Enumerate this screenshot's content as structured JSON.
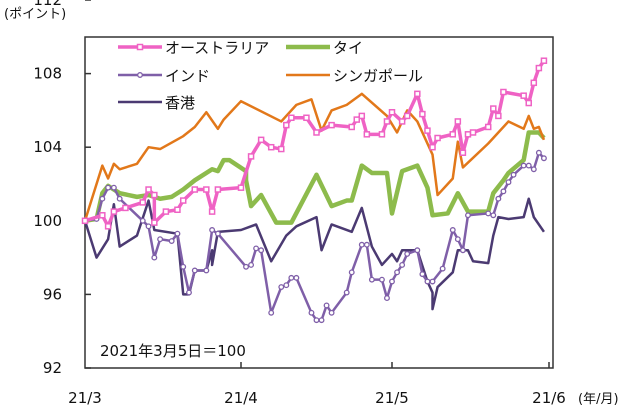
{
  "chart_data": {
    "type": "line",
    "ylabel": "(ポイント)",
    "xlabel": "(年/月)",
    "ylim": [
      92,
      112
    ],
    "yticks": [
      "112",
      "108",
      "104",
      "100",
      "96",
      "92"
    ],
    "xlim": [
      "2021-03-05",
      "2021-06-01"
    ],
    "xticks": [
      {
        "date": "2021-03-05",
        "label": "21/3"
      },
      {
        "date": "2021-04-01",
        "label": "21/4"
      },
      {
        "date": "2021-05-01",
        "label": "21/5"
      },
      {
        "date": "2021-06-01",
        "label": "21/6"
      }
    ],
    "annotation": "2021年3月5日＝100",
    "grid": false,
    "legend_position": "top-left",
    "series": [
      {
        "name": "オーストラリア",
        "color": "#ef62c4",
        "marker": "square",
        "points": [
          [
            "2021-03-05",
            100.0
          ],
          [
            "2021-03-08",
            100.3
          ],
          [
            "2021-03-09",
            99.7
          ],
          [
            "2021-03-10",
            100.5
          ],
          [
            "2021-03-12",
            100.7
          ],
          [
            "2021-03-15",
            101.0
          ],
          [
            "2021-03-16",
            101.7
          ],
          [
            "2021-03-17",
            101.4
          ],
          [
            "2021-03-17",
            99.9
          ],
          [
            "2021-03-19",
            100.5
          ],
          [
            "2021-03-21",
            100.6
          ],
          [
            "2021-03-22",
            101.1
          ],
          [
            "2021-03-24",
            101.7
          ],
          [
            "2021-03-26",
            101.7
          ],
          [
            "2021-03-27",
            100.5
          ],
          [
            "2021-03-28",
            101.7
          ],
          [
            "2021-04-01",
            101.8
          ],
          [
            "2021-04-03",
            103.5
          ],
          [
            "2021-04-05",
            104.4
          ],
          [
            "2021-04-07",
            104.0
          ],
          [
            "2021-04-09",
            103.9
          ],
          [
            "2021-04-10",
            105.2
          ],
          [
            "2021-04-11",
            105.6
          ],
          [
            "2021-04-14",
            105.6
          ],
          [
            "2021-04-16",
            104.8
          ],
          [
            "2021-04-19",
            105.2
          ],
          [
            "2021-04-23",
            105.1
          ],
          [
            "2021-04-24",
            105.5
          ],
          [
            "2021-04-25",
            105.7
          ],
          [
            "2021-04-26",
            104.7
          ],
          [
            "2021-04-29",
            104.7
          ],
          [
            "2021-04-30",
            105.4
          ],
          [
            "2021-05-01",
            105.9
          ],
          [
            "2021-05-03",
            105.4
          ],
          [
            "2021-05-04",
            105.7
          ],
          [
            "2021-05-06",
            106.9
          ],
          [
            "2021-05-07",
            105.8
          ],
          [
            "2021-05-08",
            104.9
          ],
          [
            "2021-05-09",
            104.0
          ],
          [
            "2021-05-10",
            104.5
          ],
          [
            "2021-05-13",
            104.7
          ],
          [
            "2021-05-14",
            105.4
          ],
          [
            "2021-05-15",
            103.7
          ],
          [
            "2021-05-16",
            104.7
          ],
          [
            "2021-05-17",
            104.8
          ],
          [
            "2021-05-20",
            105.1
          ],
          [
            "2021-05-21",
            106.1
          ],
          [
            "2021-05-22",
            105.7
          ],
          [
            "2021-05-23",
            107.0
          ],
          [
            "2021-05-27",
            106.8
          ],
          [
            "2021-05-28",
            106.4
          ],
          [
            "2021-05-29",
            107.5
          ],
          [
            "2021-05-30",
            108.3
          ],
          [
            "2021-05-31",
            108.7
          ]
        ]
      },
      {
        "name": "タイ",
        "color": "#8dbb4c",
        "marker": "none",
        "points": [
          [
            "2021-03-05",
            100.0
          ],
          [
            "2021-03-07",
            100.1
          ],
          [
            "2021-03-08",
            101.5
          ],
          [
            "2021-03-09",
            101.9
          ],
          [
            "2021-03-11",
            101.5
          ],
          [
            "2021-03-14",
            101.3
          ],
          [
            "2021-03-16",
            101.4
          ],
          [
            "2021-03-18",
            101.2
          ],
          [
            "2021-03-20",
            101.3
          ],
          [
            "2021-03-22",
            101.7
          ],
          [
            "2021-03-24",
            102.2
          ],
          [
            "2021-03-27",
            102.8
          ],
          [
            "2021-03-28",
            102.7
          ],
          [
            "2021-03-29",
            103.3
          ],
          [
            "2021-03-30",
            103.3
          ],
          [
            "2021-04-02",
            102.7
          ],
          [
            "2021-04-02",
            102.2
          ],
          [
            "2021-04-03",
            100.8
          ],
          [
            "2021-04-05",
            101.4
          ],
          [
            "2021-04-08",
            99.9
          ],
          [
            "2021-04-11",
            99.9
          ],
          [
            "2021-04-16",
            102.5
          ],
          [
            "2021-04-19",
            100.8
          ],
          [
            "2021-04-22",
            101.1
          ],
          [
            "2021-04-23",
            101.1
          ],
          [
            "2021-04-25",
            103.0
          ],
          [
            "2021-04-27",
            102.6
          ],
          [
            "2021-04-30",
            102.6
          ],
          [
            "2021-05-01",
            100.4
          ],
          [
            "2021-05-03",
            102.7
          ],
          [
            "2021-05-06",
            103.0
          ],
          [
            "2021-05-08",
            101.8
          ],
          [
            "2021-05-09",
            100.3
          ],
          [
            "2021-05-12",
            100.4
          ],
          [
            "2021-05-14",
            101.5
          ],
          [
            "2021-05-16",
            100.5
          ],
          [
            "2021-05-20",
            100.5
          ],
          [
            "2021-05-21",
            101.5
          ],
          [
            "2021-05-23",
            102.2
          ],
          [
            "2021-05-24",
            102.6
          ],
          [
            "2021-05-27",
            103.3
          ],
          [
            "2021-05-28",
            104.8
          ],
          [
            "2021-05-30",
            104.8
          ],
          [
            "2021-05-31",
            104.5
          ]
        ]
      },
      {
        "name": "インド",
        "color": "#7f5fa8",
        "marker": "circle",
        "points": [
          [
            "2021-03-05",
            100.0
          ],
          [
            "2021-03-07",
            100.1
          ],
          [
            "2021-03-08",
            101.2
          ],
          [
            "2021-03-09",
            101.8
          ],
          [
            "2021-03-10",
            101.8
          ],
          [
            "2021-03-11",
            101.2
          ],
          [
            "2021-03-15",
            100.0
          ],
          [
            "2021-03-16",
            99.7
          ],
          [
            "2021-03-17",
            98.0
          ],
          [
            "2021-03-18",
            99.0
          ],
          [
            "2021-03-20",
            98.9
          ],
          [
            "2021-03-21",
            99.3
          ],
          [
            "2021-03-22",
            97.5
          ],
          [
            "2021-03-23",
            96.1
          ],
          [
            "2021-03-24",
            97.3
          ],
          [
            "2021-03-26",
            97.3
          ],
          [
            "2021-03-27",
            99.5
          ],
          [
            "2021-03-28",
            99.3
          ],
          [
            "2021-04-02",
            97.5
          ],
          [
            "2021-04-03",
            97.6
          ],
          [
            "2021-04-04",
            98.5
          ],
          [
            "2021-04-05",
            98.4
          ],
          [
            "2021-04-07",
            95.0
          ],
          [
            "2021-04-09",
            96.4
          ],
          [
            "2021-04-10",
            96.5
          ],
          [
            "2021-04-11",
            96.9
          ],
          [
            "2021-04-12",
            96.9
          ],
          [
            "2021-04-15",
            95.0
          ],
          [
            "2021-04-16",
            94.6
          ],
          [
            "2021-04-17",
            94.6
          ],
          [
            "2021-04-18",
            95.4
          ],
          [
            "2021-04-19",
            95.0
          ],
          [
            "2021-04-22",
            96.1
          ],
          [
            "2021-04-23",
            97.2
          ],
          [
            "2021-04-25",
            98.7
          ],
          [
            "2021-04-26",
            98.7
          ],
          [
            "2021-04-27",
            96.8
          ],
          [
            "2021-04-29",
            96.8
          ],
          [
            "2021-04-30",
            95.8
          ],
          [
            "2021-05-01",
            96.7
          ],
          [
            "2021-05-02",
            97.2
          ],
          [
            "2021-05-03",
            97.6
          ],
          [
            "2021-05-04",
            98.2
          ],
          [
            "2021-05-06",
            98.4
          ],
          [
            "2021-05-07",
            97.1
          ],
          [
            "2021-05-08",
            96.7
          ],
          [
            "2021-05-09",
            96.7
          ],
          [
            "2021-05-11",
            97.4
          ],
          [
            "2021-05-13",
            99.5
          ],
          [
            "2021-05-14",
            99.0
          ],
          [
            "2021-05-15",
            98.4
          ],
          [
            "2021-05-16",
            100.3
          ],
          [
            "2021-05-20",
            100.4
          ],
          [
            "2021-05-21",
            100.3
          ],
          [
            "2021-05-22",
            101.2
          ],
          [
            "2021-05-23",
            101.6
          ],
          [
            "2021-05-24",
            102.1
          ],
          [
            "2021-05-25",
            102.5
          ],
          [
            "2021-05-27",
            103.0
          ],
          [
            "2021-05-28",
            103.0
          ],
          [
            "2021-05-29",
            102.8
          ],
          [
            "2021-05-30",
            103.7
          ],
          [
            "2021-05-31",
            103.4
          ]
        ]
      },
      {
        "name": "シンガポール",
        "color": "#e2781a",
        "marker": "none",
        "points": [
          [
            "2021-03-05",
            100.0
          ],
          [
            "2021-03-08",
            103.0
          ],
          [
            "2021-03-09",
            102.3
          ],
          [
            "2021-03-10",
            103.1
          ],
          [
            "2021-03-11",
            102.8
          ],
          [
            "2021-03-14",
            103.1
          ],
          [
            "2021-03-16",
            104.0
          ],
          [
            "2021-03-18",
            103.9
          ],
          [
            "2021-03-22",
            104.6
          ],
          [
            "2021-03-24",
            105.1
          ],
          [
            "2021-03-26",
            105.9
          ],
          [
            "2021-03-28",
            105.0
          ],
          [
            "2021-03-29",
            105.5
          ],
          [
            "2021-04-01",
            106.5
          ],
          [
            "2021-04-09",
            105.4
          ],
          [
            "2021-04-12",
            106.3
          ],
          [
            "2021-04-15",
            106.6
          ],
          [
            "2021-04-17",
            104.9
          ],
          [
            "2021-04-19",
            106.0
          ],
          [
            "2021-04-22",
            106.3
          ],
          [
            "2021-04-25",
            106.9
          ],
          [
            "2021-04-30",
            105.7
          ],
          [
            "2021-05-02",
            104.8
          ],
          [
            "2021-05-04",
            106.0
          ],
          [
            "2021-05-06",
            105.4
          ],
          [
            "2021-05-09",
            103.6
          ],
          [
            "2021-05-10",
            101.4
          ],
          [
            "2021-05-13",
            102.3
          ],
          [
            "2021-05-14",
            104.3
          ],
          [
            "2021-05-15",
            102.9
          ],
          [
            "2021-05-20",
            104.2
          ],
          [
            "2021-05-21",
            104.5
          ],
          [
            "2021-05-24",
            105.4
          ],
          [
            "2021-05-27",
            105.0
          ],
          [
            "2021-05-28",
            105.7
          ],
          [
            "2021-05-29",
            105.0
          ],
          [
            "2021-05-30",
            105.1
          ],
          [
            "2021-05-31",
            104.4
          ]
        ]
      },
      {
        "name": "香港",
        "color": "#4b3a72",
        "marker": "none",
        "points": [
          [
            "2021-03-05",
            100.0
          ],
          [
            "2021-03-07",
            98.0
          ],
          [
            "2021-03-09",
            99.0
          ],
          [
            "2021-03-10",
            100.9
          ],
          [
            "2021-03-11",
            98.6
          ],
          [
            "2021-03-14",
            99.2
          ],
          [
            "2021-03-16",
            101.1
          ],
          [
            "2021-03-17",
            99.5
          ],
          [
            "2021-03-21",
            99.3
          ],
          [
            "2021-03-22",
            96.0
          ],
          [
            "2021-03-23",
            96.0
          ],
          [
            "2021-03-24",
            97.3
          ],
          [
            "2021-03-26",
            97.3
          ],
          [
            "2021-03-27",
            98.4
          ],
          [
            "2021-03-27",
            97.6
          ],
          [
            "2021-03-28",
            99.4
          ],
          [
            "2021-04-01",
            99.5
          ],
          [
            "2021-04-04",
            99.8
          ],
          [
            "2021-04-07",
            97.8
          ],
          [
            "2021-04-10",
            99.2
          ],
          [
            "2021-04-12",
            99.7
          ],
          [
            "2021-04-16",
            100.2
          ],
          [
            "2021-04-17",
            98.4
          ],
          [
            "2021-04-19",
            99.8
          ],
          [
            "2021-04-23",
            99.4
          ],
          [
            "2021-04-25",
            100.7
          ],
          [
            "2021-04-27",
            98.6
          ],
          [
            "2021-04-29",
            97.6
          ],
          [
            "2021-05-01",
            98.2
          ],
          [
            "2021-05-02",
            97.8
          ],
          [
            "2021-05-03",
            98.4
          ],
          [
            "2021-05-06",
            98.4
          ],
          [
            "2021-05-08",
            96.7
          ],
          [
            "2021-05-09",
            96.1
          ],
          [
            "2021-05-09",
            95.2
          ],
          [
            "2021-05-10",
            96.4
          ],
          [
            "2021-05-13",
            97.2
          ],
          [
            "2021-05-14",
            98.4
          ],
          [
            "2021-05-16",
            98.4
          ],
          [
            "2021-05-17",
            97.8
          ],
          [
            "2021-05-20",
            97.7
          ],
          [
            "2021-05-21",
            99.2
          ],
          [
            "2021-05-22",
            100.2
          ],
          [
            "2021-05-24",
            100.1
          ],
          [
            "2021-05-27",
            100.2
          ],
          [
            "2021-05-28",
            101.2
          ],
          [
            "2021-05-29",
            100.2
          ],
          [
            "2021-05-31",
            99.4
          ]
        ]
      }
    ]
  }
}
